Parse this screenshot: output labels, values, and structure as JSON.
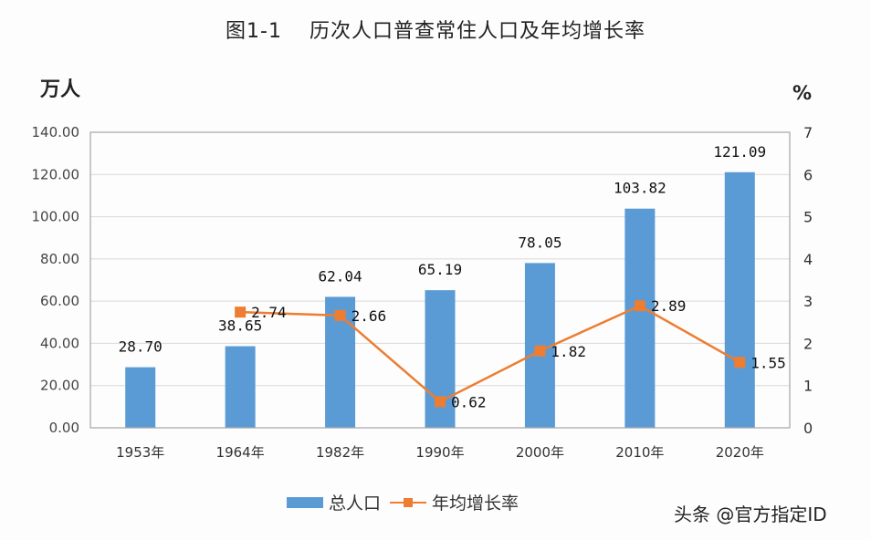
{
  "title": {
    "figure_no": "图1-1",
    "text": "历次人口普查常住人口及年均增长率"
  },
  "axes": {
    "left_unit": "万人",
    "right_unit": "%",
    "left_ticks": [
      "0.00",
      "20.00",
      "40.00",
      "60.00",
      "80.00",
      "100.00",
      "120.00",
      "140.00"
    ],
    "right_ticks": [
      "0",
      "1",
      "2",
      "3",
      "4",
      "5",
      "6",
      "7"
    ]
  },
  "legend": {
    "bar_label": "总人口",
    "line_label": "年均增长率"
  },
  "watermark": "头条 @官方指定ID",
  "colors": {
    "bar": "#5b9bd5",
    "line": "#ed7d31",
    "grid": "#d9d9d9",
    "axis": "#a6a6a6"
  },
  "chart_data": {
    "type": "bar+line",
    "title": "图1-1 历次人口普查常住人口及年均增长率",
    "categories": [
      "1953年",
      "1964年",
      "1982年",
      "1990年",
      "2000年",
      "2010年",
      "2020年"
    ],
    "series": [
      {
        "name": "总人口",
        "type": "bar",
        "axis": "left",
        "values": [
          28.7,
          38.65,
          62.04,
          65.19,
          78.05,
          103.82,
          121.09
        ],
        "labels": [
          "28.70",
          "38.65",
          "62.04",
          "65.19",
          "78.05",
          "103.82",
          "121.09"
        ]
      },
      {
        "name": "年均增长率",
        "type": "line",
        "axis": "right",
        "values": [
          null,
          2.74,
          2.66,
          0.62,
          1.82,
          2.89,
          1.55
        ],
        "labels": [
          "",
          "2.74",
          "2.66",
          "0.62",
          "1.82",
          "2.89",
          "1.55"
        ]
      }
    ],
    "ylabel_left": "万人",
    "ylabel_right": "%",
    "ylim_left": [
      0,
      140
    ],
    "ylim_right": [
      0,
      7
    ],
    "grid": true,
    "legend_position": "bottom"
  }
}
